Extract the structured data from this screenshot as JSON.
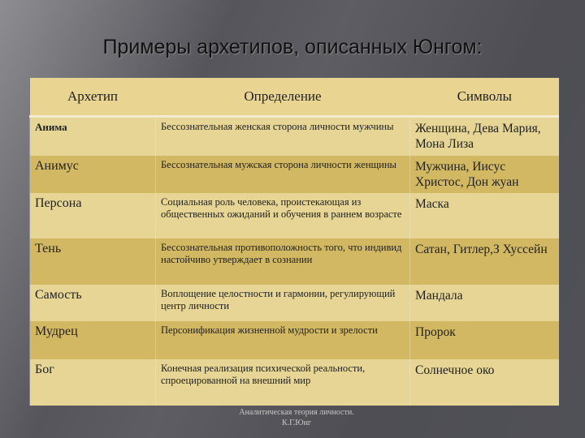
{
  "title": "Примеры архетипов, описанных Юнгом:",
  "table": {
    "headers": [
      "Архетип",
      "Определение",
      "Символы"
    ],
    "rows": [
      {
        "archetype": "Анима",
        "definition": "Бессознательная женская сторона личности мужчины",
        "symbols": "Женщина, Дева Мария, Мона Лиза"
      },
      {
        "archetype": "Анимус",
        "definition": "Бессознательная мужская сторона личности женщины",
        "symbols": "Мужчина, Иисус Христос, Дон жуан"
      },
      {
        "archetype": "Персона",
        "definition": "Социальная роль человека, проистекающая из общественных ожиданий и обучения в раннем возрасте",
        "symbols": "Маска"
      },
      {
        "archetype": "Тень",
        "definition": "Бессознательная противоположность того, что индивид настойчиво утверждает в сознании",
        "symbols": "Сатан, Гитлер,З Хуссейн"
      },
      {
        "archetype": "Самость",
        "definition": "Воплощение целостности и гармонии, регулирующий центр личности",
        "symbols": "Мандала"
      },
      {
        "archetype": "Мудрец",
        "definition": "Персонификация жизненной мудрости и зрелости",
        "symbols": "Пророк"
      },
      {
        "archetype": "Бог",
        "definition": "Конечная реализация психической реальности, спроецированной на внешний мир",
        "symbols": "Солнечное око"
      }
    ]
  },
  "footer": {
    "line1": "Аналитическая теория личности.",
    "line2": "К.Г.Юнг"
  }
}
